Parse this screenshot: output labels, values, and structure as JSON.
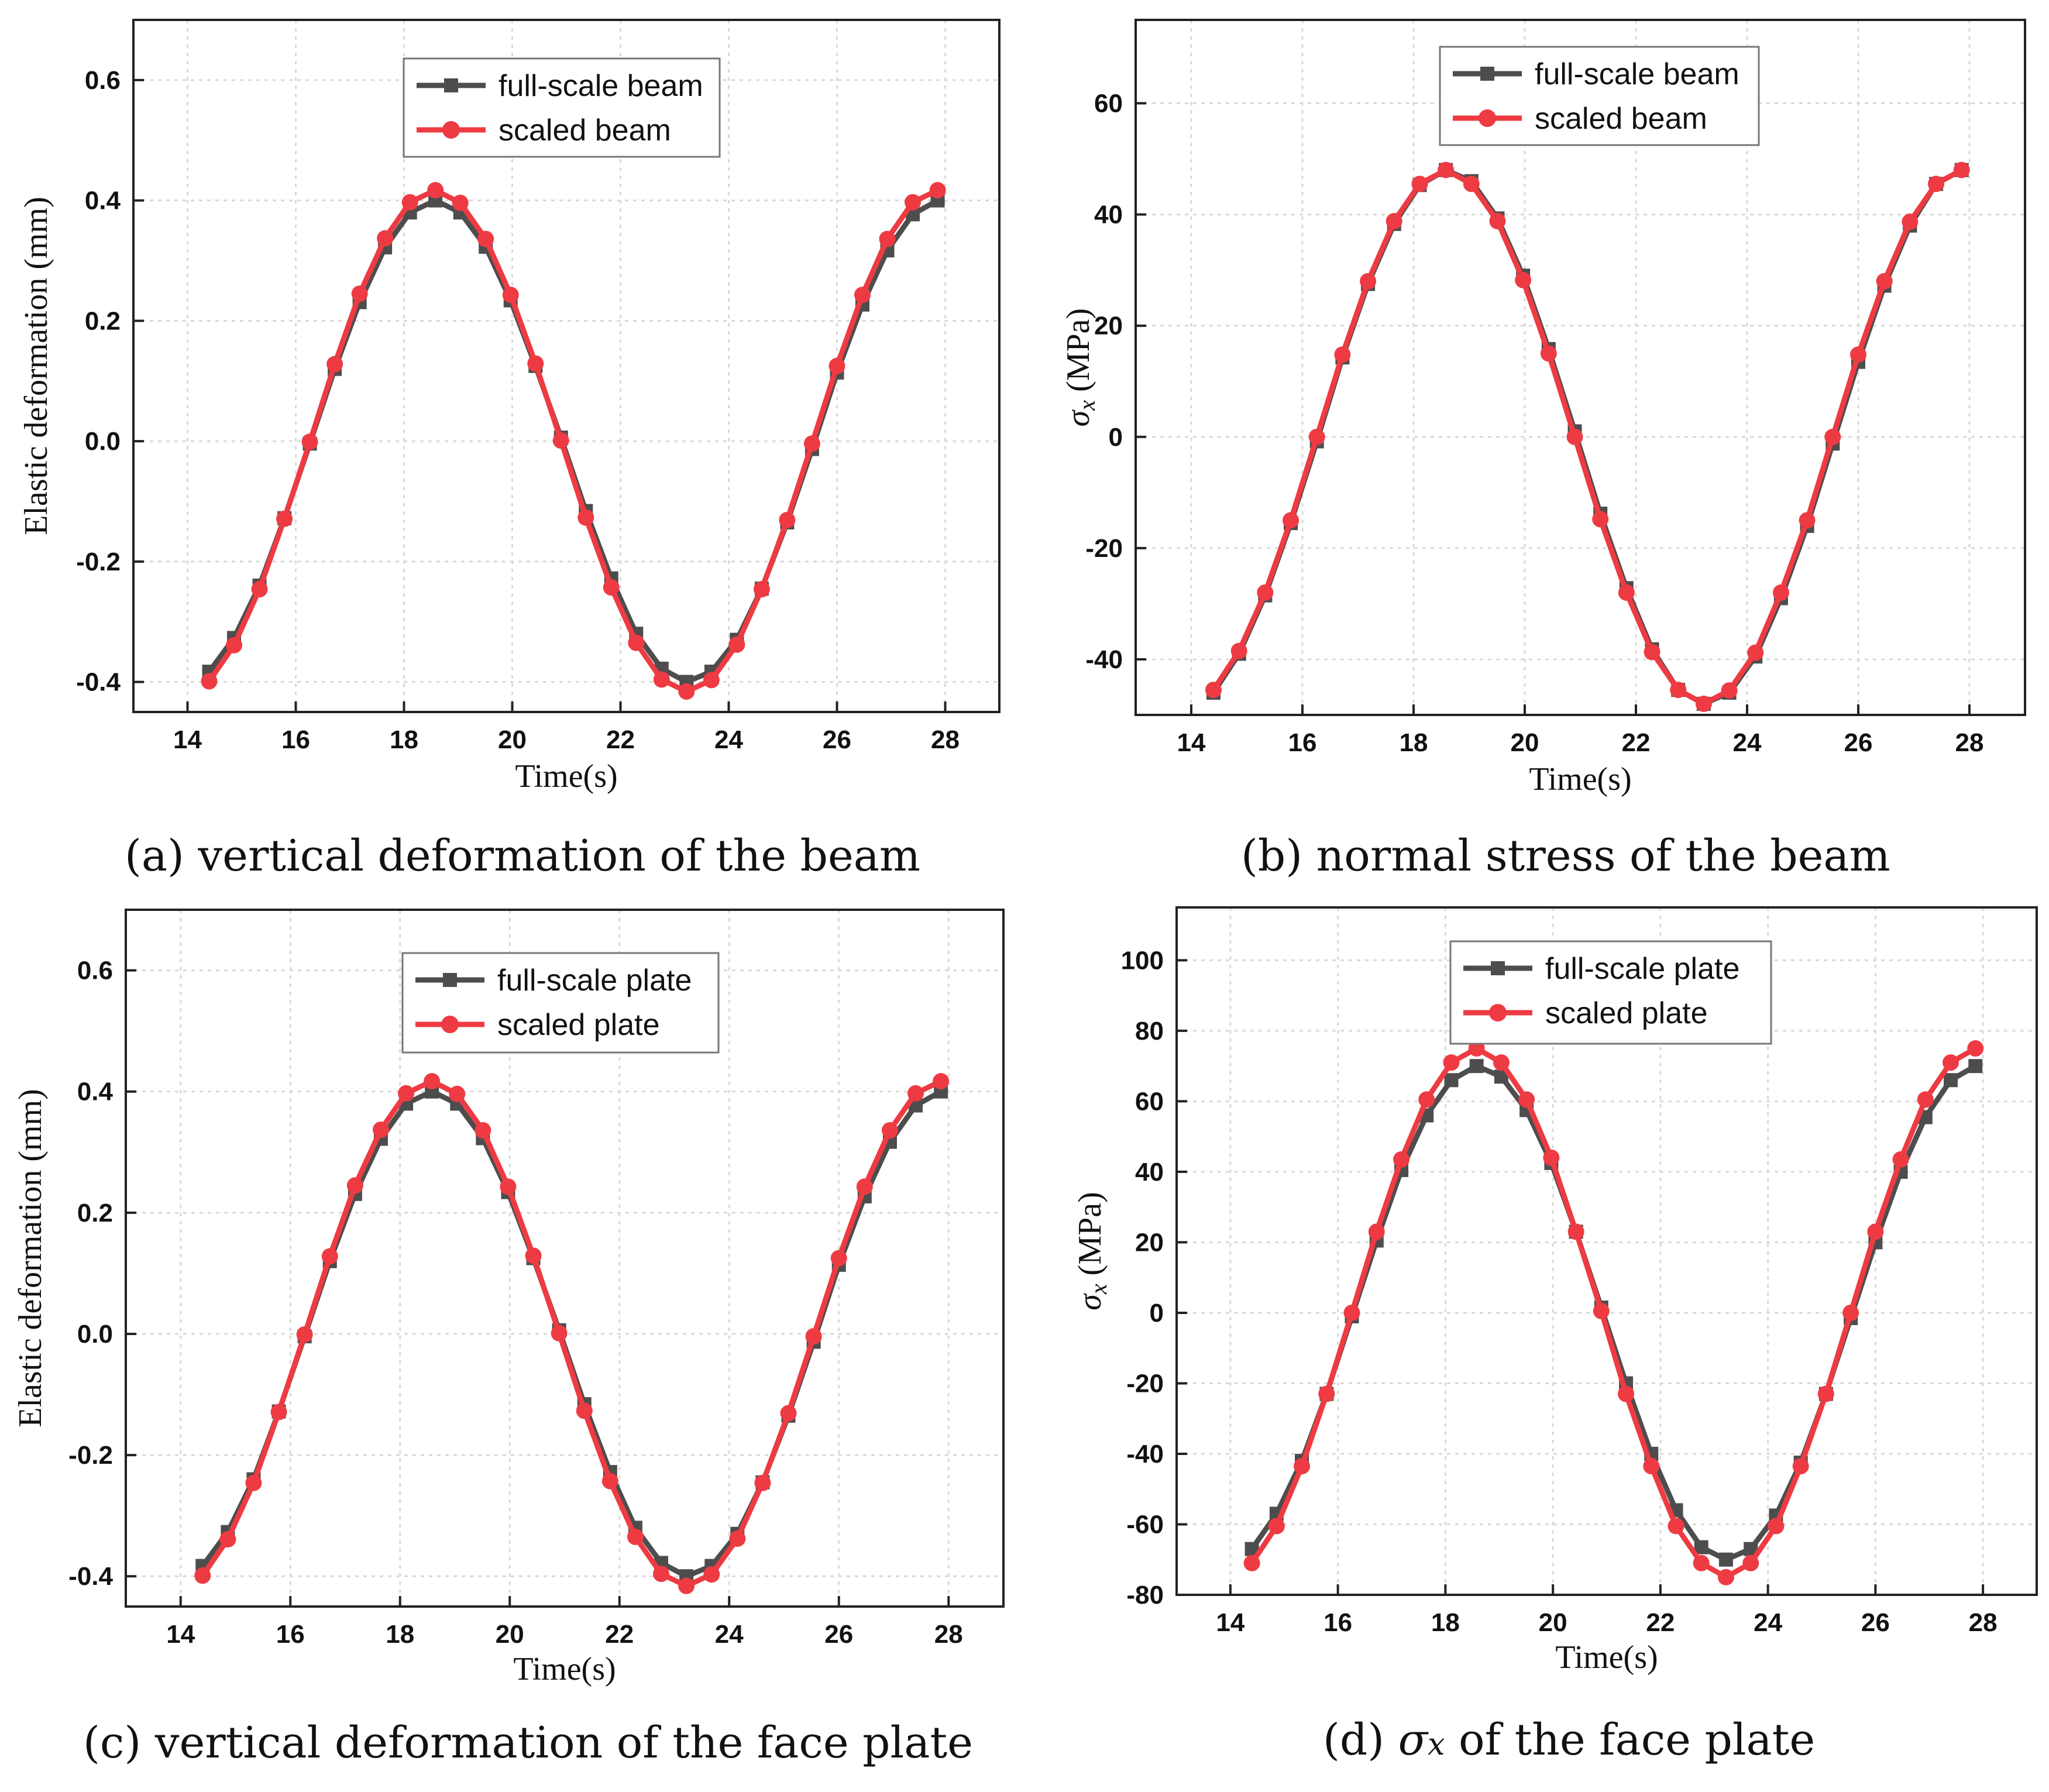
{
  "colors": {
    "full": "#4d4d4d",
    "scaled": "#ee3b43",
    "grid": "#d9d9d9",
    "axis": "#222222"
  },
  "chart_data": [
    {
      "id": "a",
      "type": "line",
      "caption": "(a) vertical deformation of the beam",
      "xlabel": "Time(s)",
      "ylabel": "Elastic deformation (mm)",
      "ylabel_style": "text",
      "xlim": [
        13,
        29
      ],
      "ylim": [
        -0.45,
        0.7
      ],
      "xticks": [
        14,
        16,
        18,
        20,
        22,
        24,
        26,
        28
      ],
      "xtick_labels": [
        "14",
        "16",
        "18",
        "20",
        "22",
        "24",
        "26",
        "28"
      ],
      "yticks": [
        -0.4,
        -0.2,
        0.0,
        0.2,
        0.4,
        0.6
      ],
      "ytick_labels": [
        "-0.4",
        "-0.2",
        "0.0",
        "0.2",
        "0.4",
        "0.6"
      ],
      "legend_position": "top-center",
      "x": [
        14.4,
        14.86,
        15.33,
        15.79,
        16.26,
        16.72,
        17.18,
        17.65,
        18.11,
        18.58,
        19.04,
        19.51,
        19.97,
        20.43,
        20.9,
        21.36,
        21.83,
        22.29,
        22.76,
        23.22,
        23.68,
        24.15,
        24.61,
        25.08,
        25.54,
        26.0,
        26.47,
        26.93,
        27.4,
        27.86
      ],
      "series": [
        {
          "name": "full-scale beam",
          "marker": "square",
          "values": [
            -0.383,
            -0.327,
            -0.24,
            -0.128,
            -0.004,
            0.12,
            0.231,
            0.322,
            0.38,
            0.4,
            0.38,
            0.323,
            0.234,
            0.125,
            0.006,
            -0.116,
            -0.228,
            -0.32,
            -0.378,
            -0.4,
            -0.383,
            -0.33,
            -0.245,
            -0.135,
            -0.013,
            0.114,
            0.227,
            0.317,
            0.377,
            0.4
          ]
        },
        {
          "name": "scaled beam",
          "marker": "circle",
          "values": [
            -0.399,
            -0.339,
            -0.246,
            -0.129,
            -0.001,
            0.128,
            0.245,
            0.337,
            0.397,
            0.417,
            0.396,
            0.336,
            0.243,
            0.129,
            0.001,
            -0.127,
            -0.243,
            -0.335,
            -0.396,
            -0.416,
            -0.397,
            -0.338,
            -0.246,
            -0.131,
            -0.004,
            0.125,
            0.243,
            0.336,
            0.397,
            0.417
          ]
        }
      ]
    },
    {
      "id": "b",
      "type": "line",
      "caption": "(b) normal stress of the beam",
      "xlabel": "Time(s)",
      "ylabel": "σx (MPa)",
      "ylabel_style": "sigma",
      "xlim": [
        13,
        29
      ],
      "ylim": [
        -50,
        75
      ],
      "xticks": [
        14,
        16,
        18,
        20,
        22,
        24,
        26,
        28
      ],
      "xtick_labels": [
        "14",
        "16",
        "18",
        "20",
        "22",
        "24",
        "26",
        "28"
      ],
      "yticks": [
        -40,
        -20,
        0,
        20,
        40,
        60
      ],
      "ytick_labels": [
        "-40",
        "-20",
        "0",
        "20",
        "40",
        "60"
      ],
      "legend_position": "top-center",
      "x": [
        14.4,
        14.86,
        15.33,
        15.79,
        16.26,
        16.72,
        17.18,
        17.65,
        18.11,
        18.58,
        19.04,
        19.51,
        19.97,
        20.43,
        20.9,
        21.36,
        21.83,
        22.29,
        22.76,
        23.22,
        23.68,
        24.15,
        24.61,
        25.08,
        25.54,
        26.0,
        26.47,
        26.93,
        27.4,
        27.86
      ],
      "series": [
        {
          "name": "full-scale beam",
          "marker": "square",
          "values": [
            -46,
            -39,
            -28.5,
            -15.5,
            -0.8,
            14.3,
            27.5,
            38.3,
            45.3,
            48,
            46,
            39.3,
            29,
            15.8,
            1,
            -13.8,
            -27.2,
            -38.2,
            -45.5,
            -48,
            -46,
            -39.5,
            -29,
            -16,
            -1.2,
            13.5,
            27.2,
            38,
            45.5,
            48
          ]
        },
        {
          "name": "scaled beam",
          "marker": "circle",
          "values": [
            -45.5,
            -38.5,
            -28,
            -15,
            0,
            14.8,
            28,
            38.8,
            45.5,
            48,
            45.5,
            38.8,
            28.2,
            15,
            0,
            -14.8,
            -28,
            -38.7,
            -45.5,
            -48,
            -45.6,
            -38.8,
            -28,
            -15,
            0,
            14.8,
            28,
            38.7,
            45.5,
            48
          ]
        }
      ]
    },
    {
      "id": "c",
      "type": "line",
      "caption": "(c) vertical deformation of the face plate",
      "xlabel": "Time(s)",
      "ylabel": "Elastic deformation (mm)",
      "ylabel_style": "text",
      "xlim": [
        13,
        29
      ],
      "ylim": [
        -0.45,
        0.7
      ],
      "xticks": [
        14,
        16,
        18,
        20,
        22,
        24,
        26,
        28
      ],
      "xtick_labels": [
        "14",
        "16",
        "18",
        "20",
        "22",
        "24",
        "26",
        "28"
      ],
      "yticks": [
        -0.4,
        -0.2,
        0.0,
        0.2,
        0.4,
        0.6
      ],
      "ytick_labels": [
        "-0.4",
        "-0.2",
        "0.0",
        "0.2",
        "0.4",
        "0.6"
      ],
      "legend_position": "top-center",
      "x": [
        14.4,
        14.86,
        15.33,
        15.79,
        16.26,
        16.72,
        17.18,
        17.65,
        18.11,
        18.58,
        19.04,
        19.51,
        19.97,
        20.43,
        20.9,
        21.36,
        21.83,
        22.29,
        22.76,
        23.22,
        23.68,
        24.15,
        24.61,
        25.08,
        25.54,
        26.0,
        26.47,
        26.93,
        27.4,
        27.86
      ],
      "series": [
        {
          "name": "full-scale plate",
          "marker": "square",
          "values": [
            -0.383,
            -0.327,
            -0.24,
            -0.128,
            -0.004,
            0.12,
            0.231,
            0.322,
            0.38,
            0.4,
            0.38,
            0.323,
            0.234,
            0.125,
            0.006,
            -0.116,
            -0.228,
            -0.32,
            -0.378,
            -0.4,
            -0.383,
            -0.33,
            -0.245,
            -0.135,
            -0.013,
            0.114,
            0.227,
            0.317,
            0.377,
            0.4
          ]
        },
        {
          "name": "scaled plate",
          "marker": "circle",
          "values": [
            -0.399,
            -0.339,
            -0.246,
            -0.129,
            -0.001,
            0.128,
            0.245,
            0.337,
            0.397,
            0.417,
            0.396,
            0.336,
            0.243,
            0.129,
            0.001,
            -0.127,
            -0.243,
            -0.335,
            -0.396,
            -0.416,
            -0.397,
            -0.338,
            -0.246,
            -0.131,
            -0.004,
            0.125,
            0.243,
            0.336,
            0.397,
            0.417
          ]
        }
      ]
    },
    {
      "id": "d",
      "type": "line",
      "caption": "(d) σx of the face plate",
      "xlabel": "Time(s)",
      "ylabel": "σx (MPa)",
      "ylabel_style": "sigma",
      "xlim": [
        13,
        29
      ],
      "ylim": [
        -80,
        115
      ],
      "xticks": [
        14,
        16,
        18,
        20,
        22,
        24,
        26,
        28
      ],
      "xtick_labels": [
        "14",
        "16",
        "18",
        "20",
        "22",
        "24",
        "26",
        "28"
      ],
      "yticks": [
        -80,
        -60,
        -40,
        -20,
        0,
        20,
        40,
        60,
        80,
        100
      ],
      "ytick_labels": [
        "-80",
        "-60",
        "-40",
        "-20",
        "0",
        "20",
        "40",
        "60",
        "80",
        "100"
      ],
      "legend_position": "top-center",
      "x": [
        14.4,
        14.86,
        15.33,
        15.79,
        16.26,
        16.72,
        17.18,
        17.65,
        18.11,
        18.58,
        19.04,
        19.51,
        19.97,
        20.43,
        20.9,
        21.36,
        21.83,
        22.29,
        22.76,
        23.22,
        23.68,
        24.15,
        24.61,
        25.08,
        25.54,
        26.0,
        26.47,
        26.93,
        27.4,
        27.86
      ],
      "series": [
        {
          "name": "full-scale plate",
          "marker": "square",
          "values": [
            -67,
            -57,
            -42,
            -23,
            -1,
            20.5,
            40.5,
            56,
            66,
            70,
            67,
            57.5,
            42.5,
            23,
            1.5,
            -20,
            -40,
            -56,
            -66.5,
            -70,
            -67,
            -57.5,
            -42.5,
            -23,
            -1.5,
            20,
            40,
            55.5,
            66,
            70
          ]
        },
        {
          "name": "scaled plate",
          "marker": "circle",
          "values": [
            -71,
            -60.5,
            -43.5,
            -23,
            0,
            23,
            43.5,
            60.5,
            71,
            75,
            71,
            60.5,
            44,
            23,
            0.5,
            -23,
            -43.5,
            -60.5,
            -71,
            -75,
            -71,
            -60.5,
            -43.5,
            -23,
            0,
            23,
            43.5,
            60.5,
            71,
            75
          ]
        }
      ]
    }
  ]
}
